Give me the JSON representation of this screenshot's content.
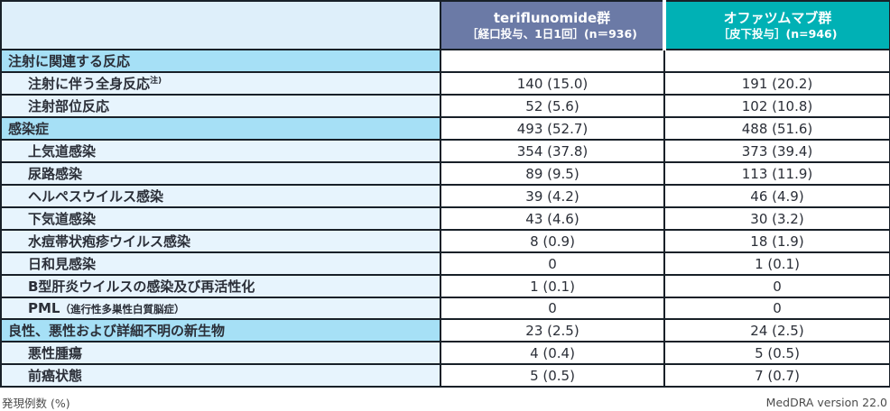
{
  "header": {
    "corner": "",
    "teriflunomide": {
      "title": "teriflunomide群",
      "subtitle": "［経口投与、1日1回］(n＝936)"
    },
    "ofatumumab": {
      "title": "オファツムマブ群",
      "subtitle": "［皮下投与］(n=946)"
    }
  },
  "rows": [
    {
      "label": "注射に関連する反応",
      "type": "category",
      "teri": "",
      "ofa": ""
    },
    {
      "label": "注射に伴う全身反応",
      "note": "注)",
      "type": "item",
      "teri": "140 (15.0)",
      "ofa": "191 (20.2)"
    },
    {
      "label": "注射部位反応",
      "type": "item",
      "teri": "52 (5.6)",
      "ofa": "102 (10.8)"
    },
    {
      "label": "感染症",
      "type": "category",
      "teri": "493 (52.7)",
      "ofa": "488 (51.6)"
    },
    {
      "label": "上気道感染",
      "type": "item",
      "teri": "354 (37.8)",
      "ofa": "373 (39.4)"
    },
    {
      "label": "尿路感染",
      "type": "item",
      "teri": "89 (9.5)",
      "ofa": "113 (11.9)"
    },
    {
      "label": "ヘルペスウイルス感染",
      "type": "item",
      "teri": "39 (4.2)",
      "ofa": "46 (4.9)"
    },
    {
      "label": "下気道感染",
      "type": "item",
      "teri": "43 (4.6)",
      "ofa": "30 (3.2)"
    },
    {
      "label": "水痘帯状疱疹ウイルス感染",
      "type": "item",
      "teri": "8 (0.9)",
      "ofa": "18 (1.9)"
    },
    {
      "label": "日和見感染",
      "type": "item",
      "teri": "0",
      "ofa": "1 (0.1)"
    },
    {
      "label": "B型肝炎ウイルスの感染及び再活性化",
      "type": "item",
      "teri": "1 (0.1)",
      "ofa": "0"
    },
    {
      "label": "PML",
      "paren": "（進行性多巣性白質脳症）",
      "type": "item",
      "teri": "0",
      "ofa": "0"
    },
    {
      "label": "良性、悪性および詳細不明の新生物",
      "type": "category",
      "teri": "23 (2.5)",
      "ofa": "24 (2.5)"
    },
    {
      "label": "悪性腫瘍",
      "type": "item",
      "teri": "4 (0.4)",
      "ofa": "5 (0.5)"
    },
    {
      "label": "前癌状態",
      "type": "item",
      "teri": "5 (0.5)",
      "ofa": "7 (0.7)"
    }
  ],
  "footer": {
    "left": "発現例数 (%)",
    "right": "MedDRA version 22.0"
  },
  "colors": {
    "teriflunomide_header": "#6b7aa6",
    "ofatumumab_header": "#00b1b5",
    "category_row": "#a6e0f6",
    "item_row": "#e7f4fd",
    "border": "#182028"
  }
}
